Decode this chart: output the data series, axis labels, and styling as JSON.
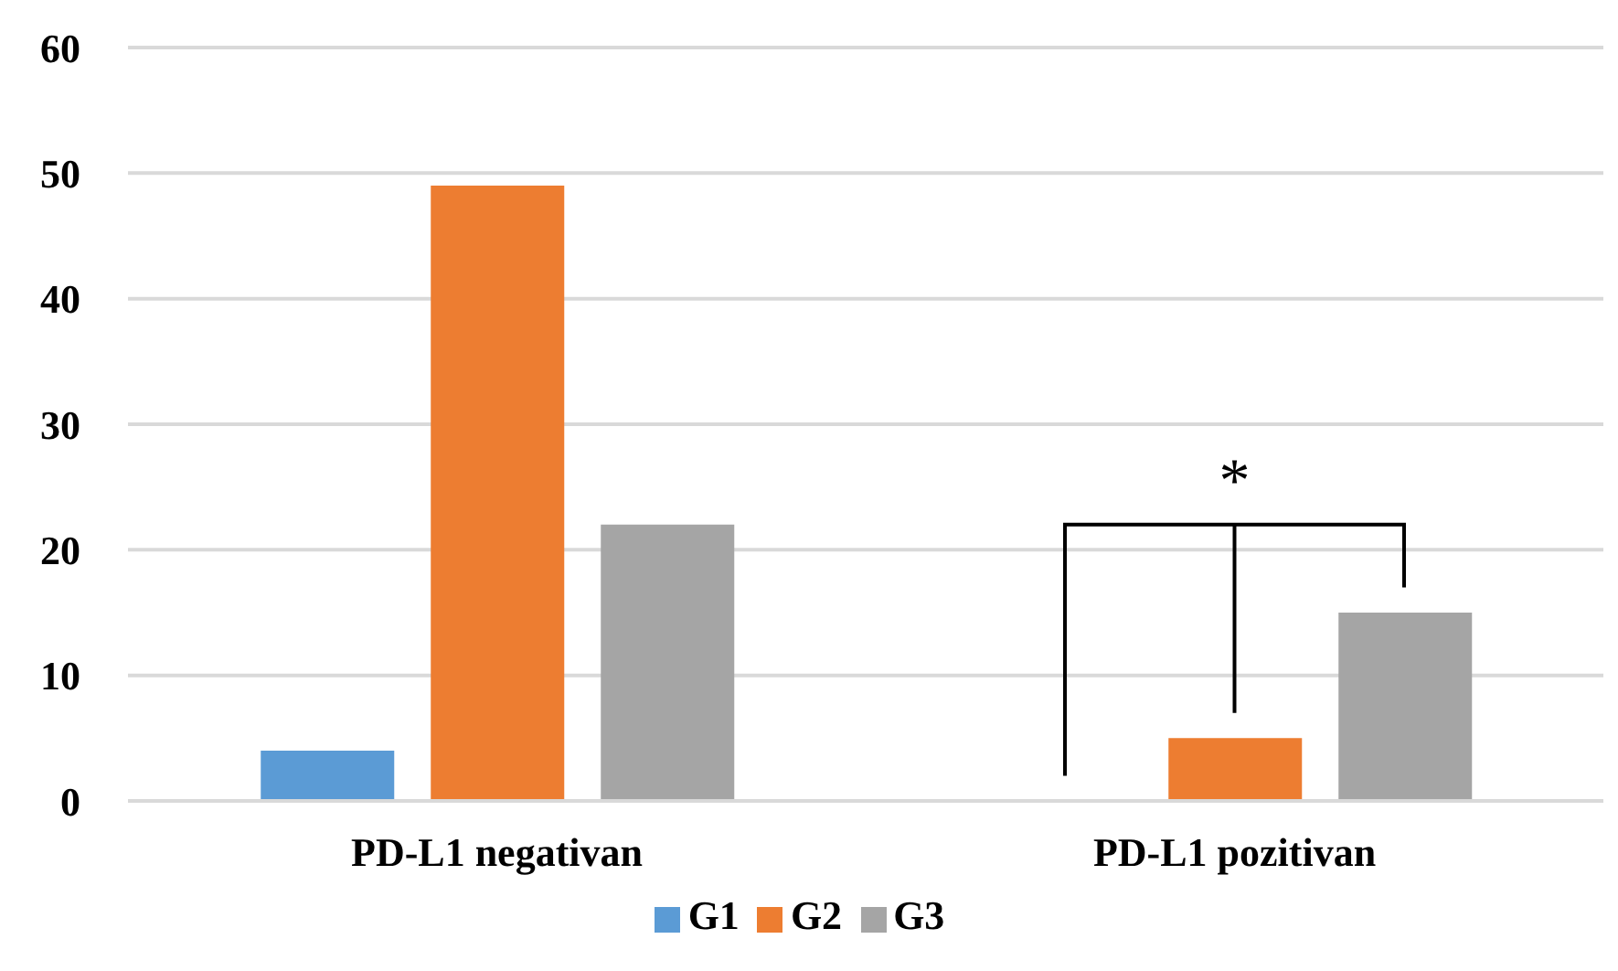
{
  "chart_data": {
    "type": "bar",
    "categories": [
      "PD-L1 negativan",
      "PD-L1 pozitivan"
    ],
    "series": [
      {
        "name": "G1",
        "color": "#5b9bd5",
        "values": [
          4,
          0
        ]
      },
      {
        "name": "G2",
        "color": "#ed7d31",
        "values": [
          49,
          5
        ]
      },
      {
        "name": "G3",
        "color": "#a5a5a5",
        "values": [
          22,
          15
        ]
      }
    ],
    "ylim": [
      0,
      60
    ],
    "yticks": [
      0,
      10,
      20,
      30,
      40,
      50,
      60
    ],
    "grid": "y",
    "legend": "bottom",
    "annotations": [
      "*"
    ]
  }
}
